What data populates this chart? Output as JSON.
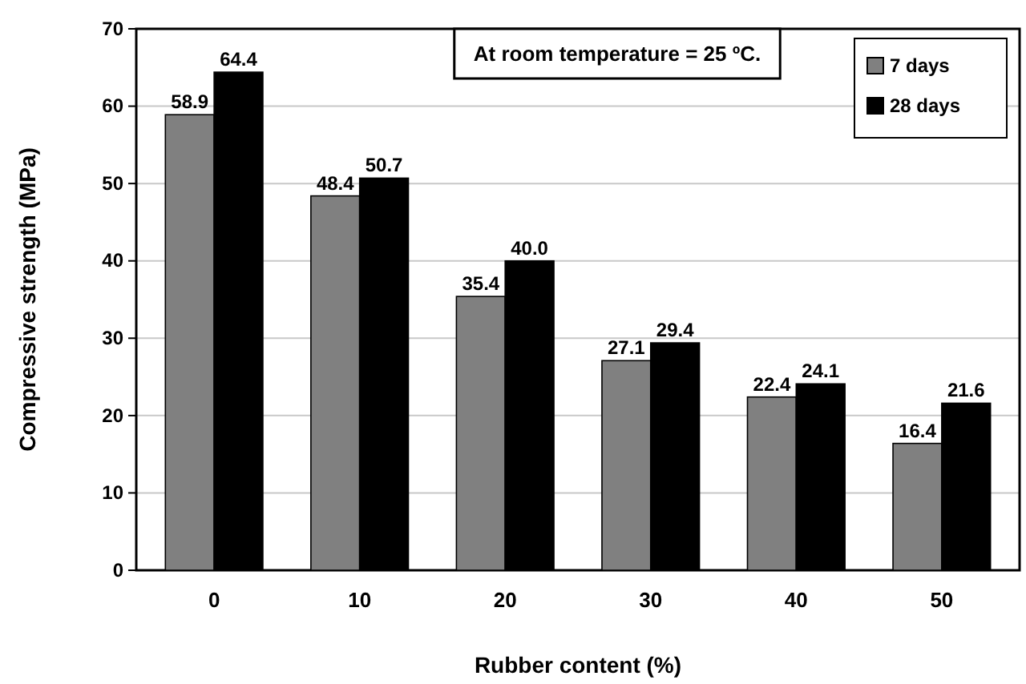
{
  "chart_data": {
    "type": "bar",
    "xlabel": "Rubber content (%)",
    "ylabel": "Compressive strength (MPa)",
    "categories": [
      "0",
      "10",
      "20",
      "30",
      "40",
      "50"
    ],
    "series": [
      {
        "name": "7 days",
        "color": "#808080",
        "values": [
          58.9,
          48.4,
          35.4,
          27.1,
          22.4,
          16.4
        ],
        "value_labels": [
          "58.9",
          "48.4",
          "35.4",
          "27.1",
          "22.4",
          "16.4"
        ]
      },
      {
        "name": "28 days",
        "color": "#000000",
        "values": [
          64.4,
          50.7,
          40,
          29.4,
          24.1,
          21.6
        ],
        "value_labels": [
          "64.4",
          "50.7",
          "40.0",
          "29.4",
          "24.1",
          "21.6"
        ]
      }
    ],
    "ylim": [
      0,
      70
    ],
    "yticks": [
      0,
      10,
      20,
      30,
      40,
      50,
      60,
      70
    ],
    "grid": "y",
    "legend": "top right",
    "annotations": [
      "At room temperature = 25 ºC."
    ]
  }
}
